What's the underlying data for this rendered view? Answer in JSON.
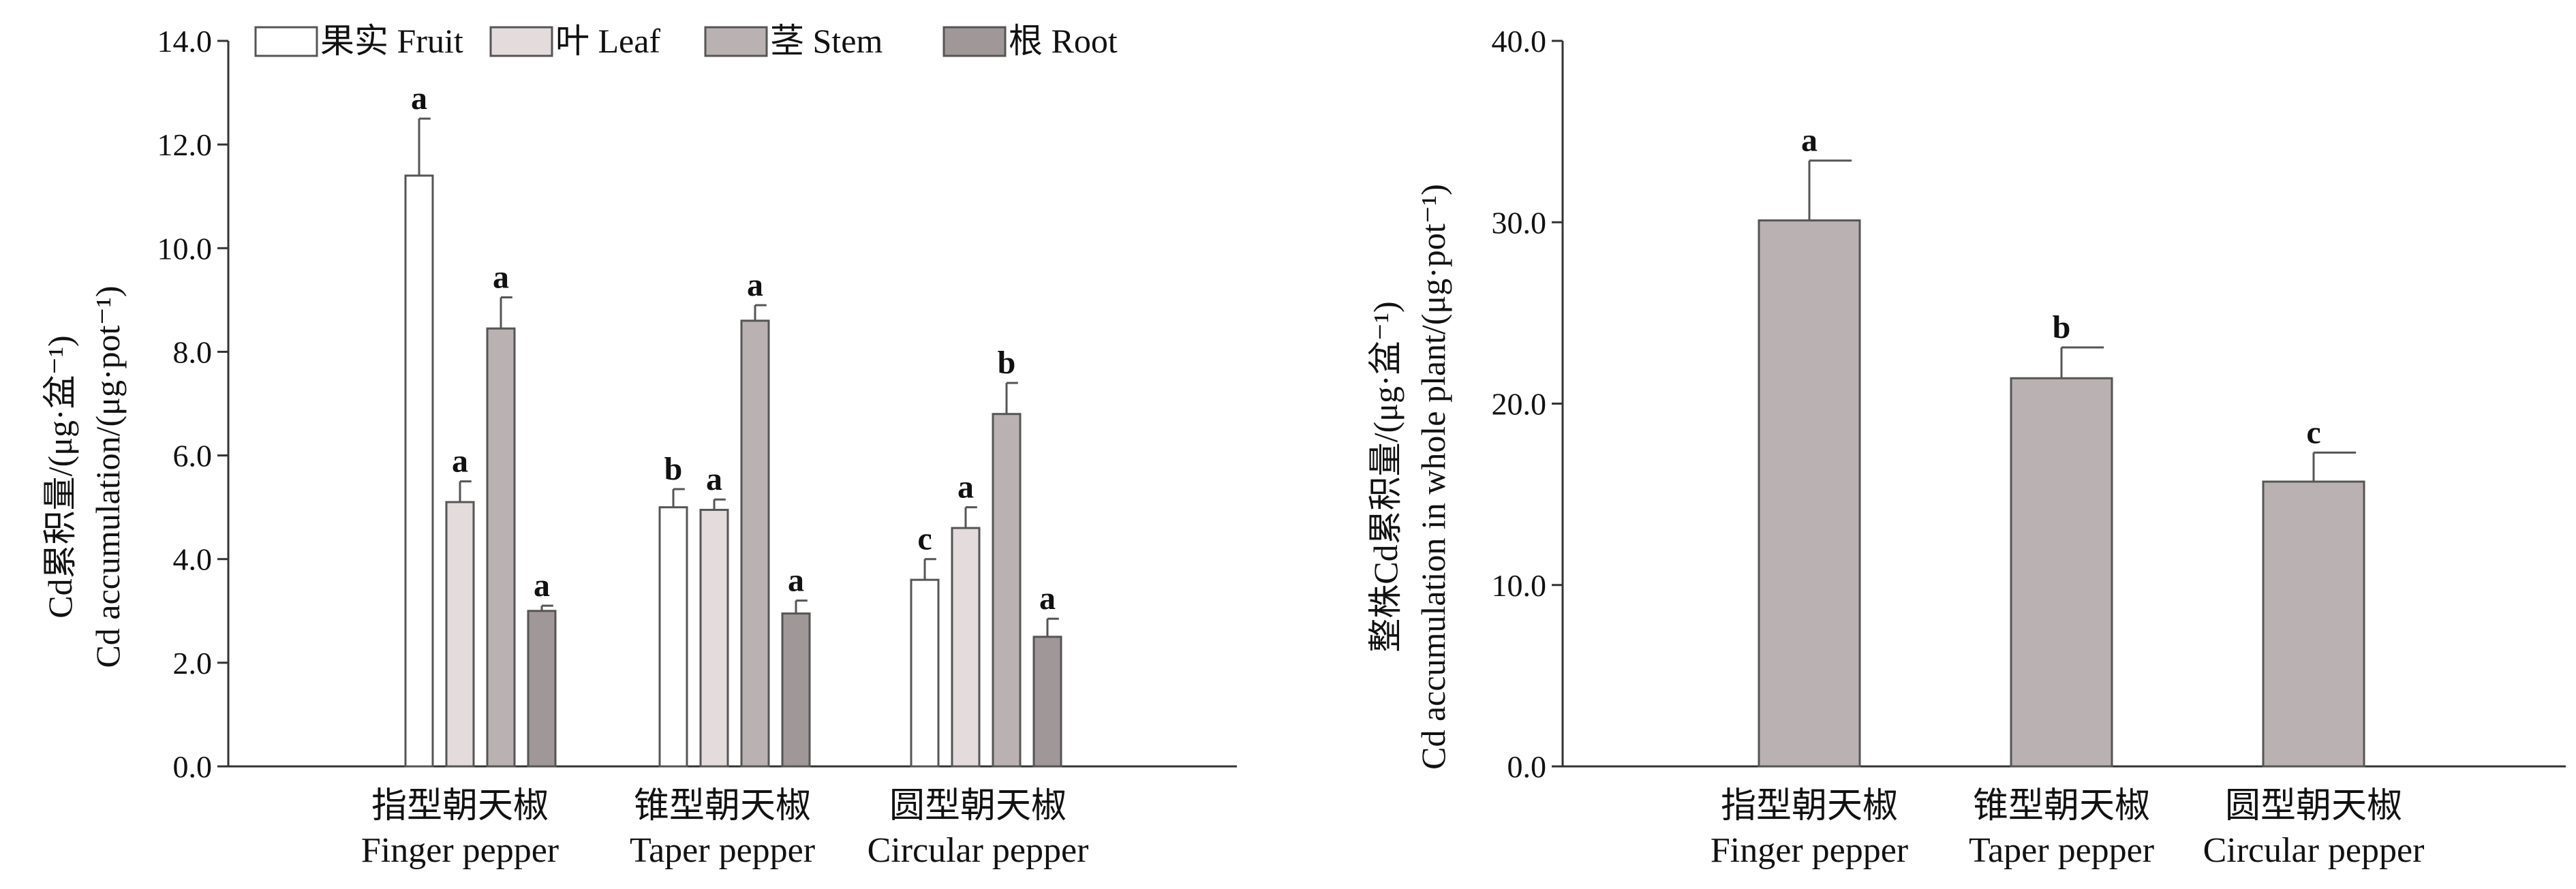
{
  "chart_data": [
    {
      "type": "bar",
      "ylabel_line1": "Cd累积量/(μg·盆⁻¹)",
      "ylabel_line2": "Cd accumulation/(μg·pot⁻¹)",
      "ylim": [
        0,
        14
      ],
      "yticks": [
        "0.0",
        "2.0",
        "4.0",
        "6.0",
        "8.0",
        "10.0",
        "12.0",
        "14.0"
      ],
      "categories": [
        {
          "cn": "指型朝天椒",
          "en": "Finger pepper"
        },
        {
          "cn": "锥型朝天椒",
          "en": "Taper pepper"
        },
        {
          "cn": "圆型朝天椒",
          "en": "Circular pepper"
        }
      ],
      "legend_position": "top",
      "series": [
        {
          "name": "果实 Fruit",
          "color": "#ffffff",
          "values": [
            11.4,
            5.0,
            3.6
          ],
          "errors": [
            1.1,
            0.35,
            0.4
          ],
          "letters": [
            "a",
            "b",
            "c"
          ]
        },
        {
          "name": "叶 Leaf",
          "color": "#e4dcdc",
          "values": [
            5.1,
            4.95,
            4.6
          ],
          "errors": [
            0.4,
            0.2,
            0.4
          ],
          "letters": [
            "a",
            "a",
            "a"
          ]
        },
        {
          "name": "茎 Stem",
          "color": "#bab2b2",
          "values": [
            8.45,
            8.6,
            6.8
          ],
          "errors": [
            0.6,
            0.3,
            0.6
          ],
          "letters": [
            "a",
            "a",
            "b"
          ]
        },
        {
          "name": "根 Root",
          "color": "#a09898",
          "values": [
            3.0,
            2.95,
            2.5
          ],
          "errors": [
            0.1,
            0.25,
            0.35
          ],
          "letters": [
            "a",
            "a",
            "a"
          ]
        }
      ]
    },
    {
      "type": "bar",
      "ylabel_line1": "整株Cd累积量/(μg·盆⁻¹)",
      "ylabel_line2": "Cd accumulation in whole plant/(μg·pot⁻¹)",
      "ylim": [
        0,
        40
      ],
      "yticks": [
        "0.0",
        "10.0",
        "20.0",
        "30.0",
        "40.0"
      ],
      "categories": [
        {
          "cn": "指型朝天椒",
          "en": "Finger pepper"
        },
        {
          "cn": "锥型朝天椒",
          "en": "Taper pepper"
        },
        {
          "cn": "圆型朝天椒",
          "en": "Circular pepper"
        }
      ],
      "series": [
        {
          "color": "#bab2b2",
          "values": [
            30.1,
            21.4,
            15.7
          ],
          "errors": [
            3.3,
            1.7,
            1.6
          ],
          "letters": [
            "a",
            "b",
            "c"
          ]
        }
      ]
    }
  ]
}
